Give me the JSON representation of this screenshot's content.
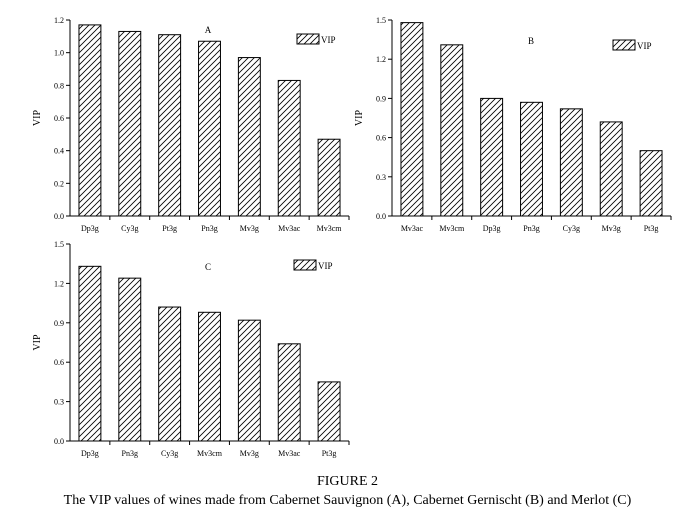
{
  "figure": {
    "number": "FIGURE 2",
    "caption": "The VIP values of wines made from Cabernet Sauvignon (A), Cabernet Gernischt (B) and Merlot (C)"
  },
  "colors": {
    "bar_fill": "#ffffff",
    "bar_stroke": "#000000",
    "hatch": "#000000"
  },
  "chart_data": [
    {
      "type": "bar",
      "panel_letter": "A",
      "ylabel": "VIP",
      "legend": {
        "label": "VIP",
        "placement": "top-right"
      },
      "categories": [
        "Dp3g",
        "Cy3g",
        "Pt3g",
        "Pn3g",
        "Mv3g",
        "Mv3ac",
        "Mv3cm"
      ],
      "values": [
        1.17,
        1.13,
        1.11,
        1.07,
        0.97,
        0.83,
        0.47
      ],
      "ylim": [
        0,
        1.2
      ],
      "yticks": [
        "0.0",
        "0.2",
        "0.4",
        "0.6",
        "0.8",
        "1.0",
        "1.2"
      ],
      "grid": false
    },
    {
      "type": "bar",
      "panel_letter": "B",
      "ylabel": "VIP",
      "legend": {
        "label": "VIP",
        "placement": "top-right"
      },
      "categories": [
        "Mv3ac",
        "Mv3cm",
        "Dp3g",
        "Pn3g",
        "Cy3g",
        "Mv3g",
        "Pt3g"
      ],
      "values": [
        1.48,
        1.31,
        0.9,
        0.87,
        0.82,
        0.72,
        0.5
      ],
      "ylim": [
        0,
        1.5
      ],
      "yticks": [
        "0.0",
        "0.3",
        "0.6",
        "0.9",
        "1.2",
        "1.5"
      ],
      "grid": false
    },
    {
      "type": "bar",
      "panel_letter": "C",
      "ylabel": "VIP",
      "legend": {
        "label": "VIP",
        "placement": "top-right"
      },
      "categories": [
        "Dp3g",
        "Pn3g",
        "Cy3g",
        "Mv3cm",
        "Mv3g",
        "Mv3ac",
        "Pt3g"
      ],
      "values": [
        1.33,
        1.24,
        1.02,
        0.98,
        0.92,
        0.74,
        0.45
      ],
      "ylim": [
        0,
        1.5
      ],
      "yticks": [
        "0.0",
        "0.3",
        "0.6",
        "0.9",
        "1.2",
        "1.5"
      ],
      "grid": false
    }
  ]
}
